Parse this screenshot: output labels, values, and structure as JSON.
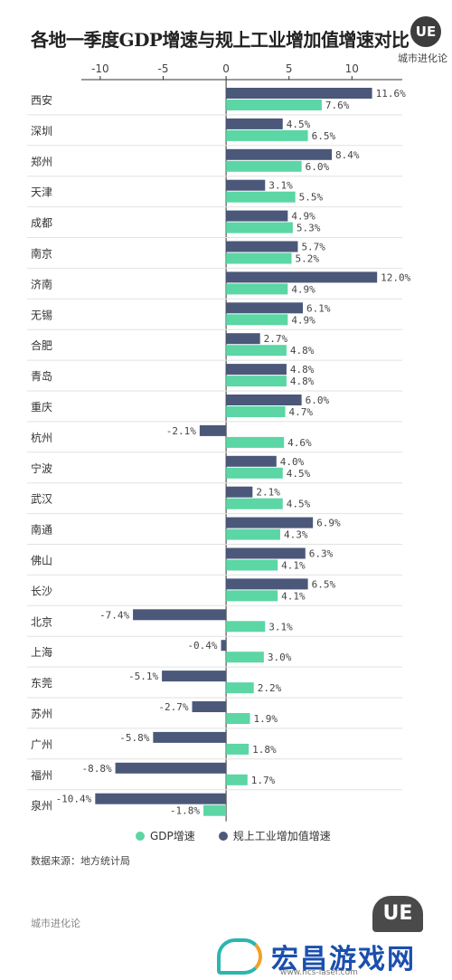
{
  "header": {
    "title": "各地一季度GDP增速与规上工业增加值增速对比",
    "brand_logo": "UE",
    "brand_name": "城市进化论"
  },
  "legend": {
    "gdp": "GDP增速",
    "industry": "规上工业增加值增速"
  },
  "source": "数据来源：地方统计局",
  "footer": {
    "brand": "城市进化论",
    "logo": "UE",
    "watermark_text": "宏昌游戏网",
    "watermark_url": "www.hcs-laser.com"
  },
  "colors": {
    "gdp": "#5bd6a4",
    "industry": "#4b587a",
    "axis": "#333333",
    "separator": "#e2e2e2"
  },
  "chart_data": {
    "type": "bar",
    "orientation": "horizontal",
    "title": "各地一季度GDP增速与规上工业增加值增速对比",
    "xlim": [
      -11.5,
      14
    ],
    "xticks": [
      -10,
      -5,
      0,
      5,
      10
    ],
    "tick_labels": [
      "-10",
      "-5",
      "0",
      "5",
      "10"
    ],
    "categories": [
      "西安",
      "深圳",
      "郑州",
      "天津",
      "成都",
      "南京",
      "济南",
      "无锡",
      "合肥",
      "青岛",
      "重庆",
      "杭州",
      "宁波",
      "武汉",
      "南通",
      "佛山",
      "长沙",
      "北京",
      "上海",
      "东莞",
      "苏州",
      "广州",
      "福州",
      "泉州"
    ],
    "series": [
      {
        "name": "规上工业增加值增速",
        "values": [
          11.6,
          4.5,
          8.4,
          3.1,
          4.9,
          5.7,
          12.0,
          6.1,
          2.7,
          4.8,
          6.0,
          -2.1,
          4.0,
          2.1,
          6.9,
          6.3,
          6.5,
          -7.4,
          -0.4,
          -5.1,
          -2.7,
          -5.8,
          -8.8,
          -10.4
        ],
        "labels": [
          "11.6%",
          "4.5%",
          "8.4%",
          "3.1%",
          "4.9%",
          "5.7%",
          "12.0%",
          "6.1%",
          "2.7%",
          "4.8%",
          "6.0%",
          "-2.1%",
          "4.0%",
          "2.1%",
          "6.9%",
          "6.3%",
          "6.5%",
          "-7.4%",
          "-0.4%",
          "-5.1%",
          "-2.7%",
          "-5.8%",
          "-8.8%",
          "-10.4%"
        ]
      },
      {
        "name": "GDP增速",
        "values": [
          7.6,
          6.5,
          6.0,
          5.5,
          5.3,
          5.2,
          4.9,
          4.9,
          4.8,
          4.8,
          4.7,
          4.6,
          4.5,
          4.5,
          4.3,
          4.1,
          4.1,
          3.1,
          3.0,
          2.2,
          1.9,
          1.8,
          1.7,
          -1.8
        ],
        "labels": [
          "7.6%",
          "6.5%",
          "6.0%",
          "5.5%",
          "5.3%",
          "5.2%",
          "4.9%",
          "4.9%",
          "4.8%",
          "4.8%",
          "4.7%",
          "4.6%",
          "4.5%",
          "4.5%",
          "4.3%",
          "4.1%",
          "4.1%",
          "3.1%",
          "3.0%",
          "2.2%",
          "1.9%",
          "1.8%",
          "1.7%",
          "-1.8%"
        ]
      }
    ],
    "legend_position": "bottom"
  }
}
